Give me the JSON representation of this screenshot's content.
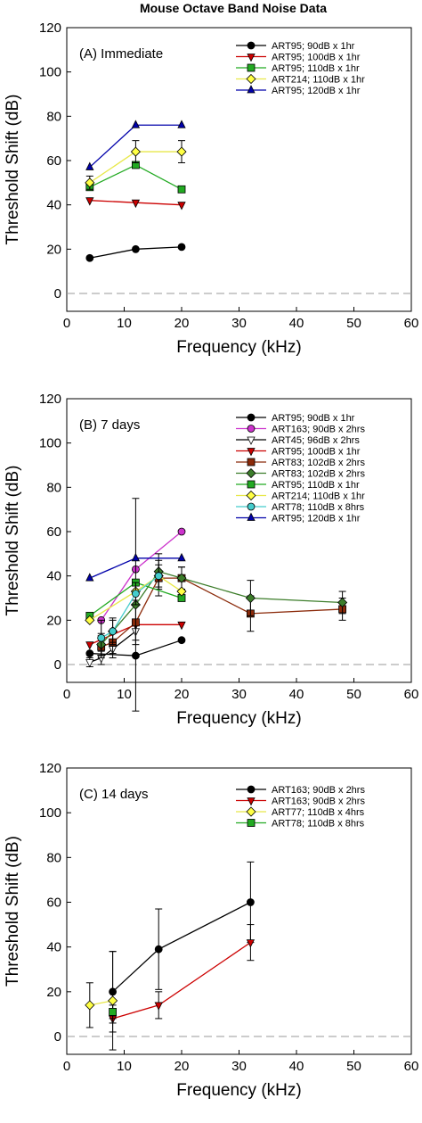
{
  "figure_title": "Mouse Octave Band Noise Data",
  "colors": {
    "black": "#000000",
    "red": "#cc0000",
    "green": "#22aa22",
    "yellow": "#ffff44",
    "blue": "#0000aa",
    "magenta": "#cc33cc",
    "white": "#ffffff",
    "brown": "#8b2a0a",
    "darkgreen": "#3c7d2a",
    "cyan": "#44cccc",
    "zero_line": "#999999"
  },
  "chart_data": [
    {
      "type": "line",
      "panel_label": "(A) Immediate",
      "xlabel": "Frequency (kHz)",
      "ylabel": "Threshold Shift (dB)",
      "xlim": [
        0,
        60
      ],
      "ylim": [
        0,
        120
      ],
      "xticks": [
        "0",
        "10",
        "20",
        "30",
        "40",
        "50",
        "60"
      ],
      "yticks": [
        "0",
        "20",
        "40",
        "60",
        "80",
        "100",
        "120"
      ],
      "zero_line": "dashed",
      "legend_position": "top-right",
      "series": [
        {
          "name": "ART95; 90dB x 1hr",
          "color": "black",
          "marker": "circle",
          "x": [
            4,
            12,
            20
          ],
          "y": [
            16,
            20,
            21
          ]
        },
        {
          "name": "ART95; 100dB x 1hr",
          "color": "red",
          "marker": "triangle-down",
          "x": [
            4,
            12,
            20
          ],
          "y": [
            42,
            41,
            40
          ]
        },
        {
          "name": "ART95; 110dB x 1hr",
          "color": "green",
          "marker": "square",
          "x": [
            4,
            12,
            20
          ],
          "y": [
            48,
            58,
            47
          ]
        },
        {
          "name": "ART214; 110dB x 1hr",
          "color": "yellow",
          "marker": "diamond",
          "x": [
            4,
            12,
            20
          ],
          "y": [
            50,
            64,
            64
          ],
          "err": [
            3,
            5,
            5
          ]
        },
        {
          "name": "ART95; 120dB x 1hr",
          "color": "blue",
          "marker": "triangle-up",
          "x": [
            4,
            12,
            20
          ],
          "y": [
            57,
            76,
            76
          ]
        }
      ]
    },
    {
      "type": "line",
      "panel_label": "(B) 7 days",
      "xlabel": "Frequency (kHz)",
      "ylabel": "Threshold Shift (dB)",
      "xlim": [
        0,
        60
      ],
      "ylim": [
        0,
        120
      ],
      "xticks": [
        "0",
        "10",
        "20",
        "30",
        "40",
        "50",
        "60"
      ],
      "yticks": [
        "0",
        "20",
        "40",
        "60",
        "80",
        "100",
        "120"
      ],
      "zero_line": "dashed",
      "legend_position": "top-right",
      "series": [
        {
          "name": "ART95; 90dB x 1hr",
          "color": "black",
          "marker": "circle",
          "x": [
            4,
            12,
            20
          ],
          "y": [
            5,
            4,
            11
          ]
        },
        {
          "name": "ART163; 90dB x 2hrs",
          "color": "magenta",
          "marker": "circle",
          "x": [
            6,
            12,
            20
          ],
          "y": [
            20,
            43,
            60
          ]
        },
        {
          "name": "ART45; 96dB x 2hrs",
          "color": "white",
          "marker": "triangle-down",
          "x": [
            4,
            6,
            8,
            12
          ],
          "y": [
            1,
            3,
            7,
            15
          ],
          "err": [
            2,
            3,
            4,
            4
          ]
        },
        {
          "name": "ART95; 100dB x 1hr",
          "color": "red",
          "marker": "triangle-down",
          "x": [
            4,
            12,
            20
          ],
          "y": [
            9,
            18,
            18
          ]
        },
        {
          "name": "ART83; 102dB x 2hrs",
          "color": "brown",
          "marker": "square",
          "x": [
            6,
            8,
            12,
            16,
            20,
            32,
            48
          ],
          "y": [
            8,
            10,
            19,
            39,
            39,
            23,
            25
          ],
          "err": [
            5,
            5,
            10,
            8,
            5,
            8,
            5
          ]
        },
        {
          "name": "ART83; 102dB x 2hrs",
          "color": "darkgreen",
          "marker": "diamond",
          "x": [
            6,
            8,
            12,
            16,
            20,
            32,
            48
          ],
          "y": [
            9,
            15,
            27,
            42,
            39,
            30,
            28
          ],
          "err": [
            5,
            5,
            48,
            8,
            5,
            8,
            5
          ]
        },
        {
          "name": "ART95; 110dB x 1hr",
          "color": "green",
          "marker": "square",
          "x": [
            4,
            12,
            20
          ],
          "y": [
            22,
            37,
            30
          ]
        },
        {
          "name": "ART214; 110dB x 1hr",
          "color": "yellow",
          "marker": "diamond",
          "x": [
            4,
            12,
            16,
            20
          ],
          "y": [
            20,
            33,
            40,
            33
          ]
        },
        {
          "name": "ART78; 110dB x 8hrs",
          "color": "cyan",
          "marker": "circle",
          "x": [
            6,
            8,
            12,
            16
          ],
          "y": [
            12,
            15,
            32,
            40
          ],
          "err": [
            8,
            6,
            5,
            5
          ]
        },
        {
          "name": "ART95; 120dB x 1hr",
          "color": "blue",
          "marker": "triangle-up",
          "x": [
            4,
            12,
            20
          ],
          "y": [
            39,
            48,
            48
          ]
        }
      ]
    },
    {
      "type": "line",
      "panel_label": "(C) 14 days",
      "xlabel": "Frequency (kHz)",
      "ylabel": "Threshold Shift (dB)",
      "xlim": [
        0,
        60
      ],
      "ylim": [
        0,
        120
      ],
      "xticks": [
        "0",
        "10",
        "20",
        "30",
        "40",
        "50",
        "60"
      ],
      "yticks": [
        "0",
        "20",
        "40",
        "60",
        "80",
        "100",
        "120"
      ],
      "zero_line": "dashed",
      "legend_position": "top-right",
      "series": [
        {
          "name": "ART163; 90dB x 2hrs",
          "color": "black",
          "marker": "circle",
          "x": [
            8,
            16,
            32
          ],
          "y": [
            20,
            39,
            60
          ],
          "err": [
            18,
            18,
            18
          ]
        },
        {
          "name": "ART163; 90dB x 2hrs",
          "color": "red",
          "marker": "triangle-down",
          "x": [
            8,
            16,
            32
          ],
          "y": [
            8,
            14,
            42
          ],
          "err": [
            2,
            6,
            8
          ]
        },
        {
          "name": "ART77; 110dB x 4hrs",
          "color": "yellow",
          "marker": "diamond",
          "x": [
            4,
            8
          ],
          "y": [
            14,
            16
          ],
          "err": [
            10,
            22
          ]
        },
        {
          "name": "ART78; 110dB x 8hrs",
          "color": "green",
          "marker": "square",
          "x": [
            8
          ],
          "y": [
            11
          ],
          "err": [
            3
          ]
        }
      ]
    }
  ]
}
